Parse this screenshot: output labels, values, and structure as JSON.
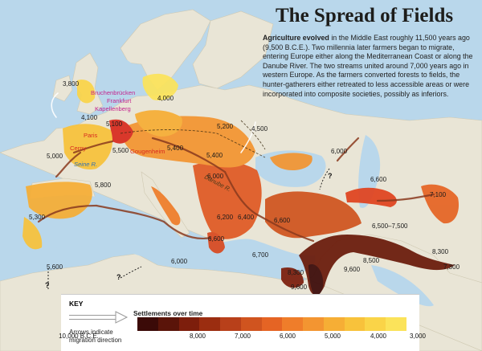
{
  "header": {
    "title": "The Spread of Fields",
    "lead": "Agriculture evolved",
    "body": " in the Middle East roughly 11,500 years ago (9,500 B.C.E.). Two millennia later farmers began to migrate, entering Europe either along the Mediterranean Coast or along the Danube River. The two streams united around 7,000 years ago in western Europe. As the farmers converted forests to fields, the hunter-gatherers either retreated to less accessible areas or were incorporated into composite societies, possibly as inferiors."
  },
  "map": {
    "date_labels": [
      "3,800",
      "4,000",
      "4,100",
      "5,100",
      "5,000",
      "5,500",
      "5,200",
      "4,500",
      "5,400",
      "5,400",
      "5,800",
      "6,000",
      "6,000",
      "6,600",
      "7,100",
      "6,500–7,500",
      "6,200",
      "6,400",
      "6,600",
      "5,300",
      "6,600",
      "6,700",
      "5,600",
      "6,000",
      "8,300",
      "9,600",
      "8,500",
      "9,600",
      "8,300",
      "7,300"
    ],
    "sites": [
      "Bruchenbrücken",
      "Frankfurt",
      "Kapellenberg",
      "Paris",
      "Cerny",
      "Gougenheim"
    ],
    "rivers": [
      "Seine R.",
      "Danube R."
    ],
    "unknown_marker": "?"
  },
  "legend": {
    "key_title": "KEY",
    "scale_title": "Settlements over time",
    "arrow_desc_line1": "Arrows indicate",
    "arrow_desc_line2": "migration direction",
    "tick_labels": [
      "10,000 B.C.E.",
      "8,000",
      "7,000",
      "6,000",
      "5,000",
      "4,000",
      "3,000"
    ],
    "scale_colors": [
      "#3b0a08",
      "#5a1409",
      "#7d1e0c",
      "#9b2d10",
      "#b8401a",
      "#d0541f",
      "#e56424",
      "#ef7d2a",
      "#f39531",
      "#f6ae35",
      "#f8c23b",
      "#fad448",
      "#fbe35a"
    ]
  }
}
